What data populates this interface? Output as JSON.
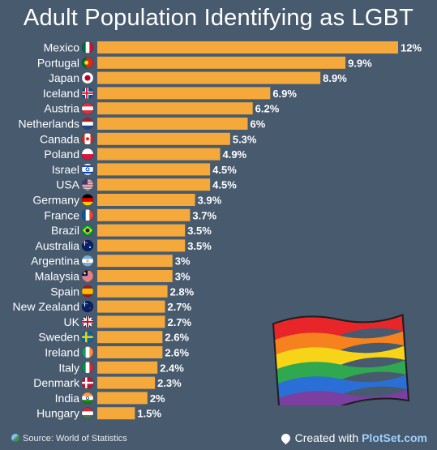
{
  "title": "Adult Population Identifying as LGBT",
  "footer": {
    "source": "Source: World of Statistics",
    "created_prefix": "Created with ",
    "created_brand": "PlotSet.com"
  },
  "colors": {
    "bar": "#f6a93b",
    "background": "#475a6e",
    "text": "#ffffff"
  },
  "chart_data": {
    "type": "bar",
    "orientation": "horizontal",
    "categories": [
      "Mexico",
      "Portugal",
      "Japan",
      "Iceland",
      "Austria",
      "Netherlands",
      "Canada",
      "Poland",
      "Israel",
      "USA",
      "Germany",
      "France",
      "Brazil",
      "Australia",
      "Argentina",
      "Malaysia",
      "Spain",
      "New Zealand",
      "UK",
      "Sweden",
      "Ireland",
      "Italy",
      "Denmark",
      "India",
      "Hungary"
    ],
    "values": [
      12,
      9.9,
      8.9,
      6.9,
      6.2,
      6,
      5.3,
      4.9,
      4.5,
      4.5,
      3.9,
      3.7,
      3.5,
      3.5,
      3,
      3,
      2.8,
      2.7,
      2.7,
      2.6,
      2.6,
      2.4,
      2.3,
      2,
      1.5
    ],
    "labels": [
      "12%",
      "9.9%",
      "8.9%",
      "6.9%",
      "6.2%",
      "6%",
      "5.3%",
      "4.9%",
      "4.5%",
      "4.5%",
      "3.9%",
      "3.7%",
      "3.5%",
      "3.5%",
      "3%",
      "3%",
      "2.8%",
      "2.7%",
      "2.7%",
      "2.6%",
      "2.6%",
      "2.4%",
      "2.3%",
      "2%",
      "1.5%"
    ],
    "flags": [
      "mexico-flag-icon",
      "portugal-flag-icon",
      "japan-flag-icon",
      "iceland-flag-icon",
      "austria-flag-icon",
      "netherlands-flag-icon",
      "canada-flag-icon",
      "poland-flag-icon",
      "israel-flag-icon",
      "usa-flag-icon",
      "germany-flag-icon",
      "france-flag-icon",
      "brazil-flag-icon",
      "australia-flag-icon",
      "argentina-flag-icon",
      "malaysia-flag-icon",
      "spain-flag-icon",
      "new-zealand-flag-icon",
      "uk-flag-icon",
      "sweden-flag-icon",
      "ireland-flag-icon",
      "italy-flag-icon",
      "denmark-flag-icon",
      "india-flag-icon",
      "hungary-flag-icon"
    ],
    "xlim": [
      0,
      12
    ],
    "grid": false,
    "legend": "none"
  }
}
